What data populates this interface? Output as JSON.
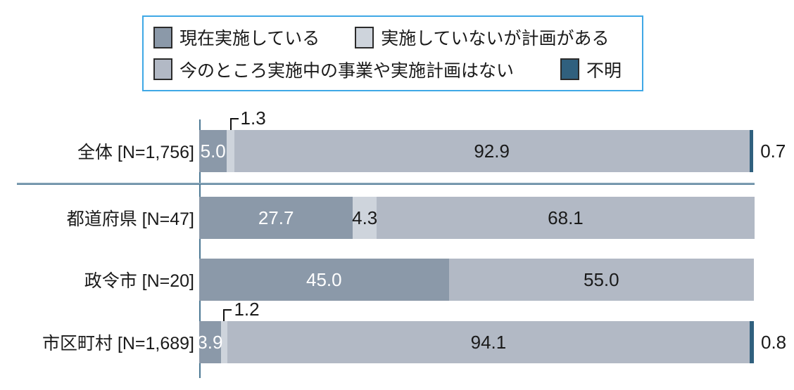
{
  "legend": {
    "items": [
      {
        "label": "現在実施している",
        "color": "#8b99a9"
      },
      {
        "label": "実施していないが計画がある",
        "color": "#ced4dc"
      },
      {
        "label": "今のところ実施中の事業や実施計画はない",
        "color": "#b2b9c5"
      },
      {
        "label": "不明",
        "color": "#30607e"
      }
    ]
  },
  "chart_data": {
    "type": "bar",
    "stacked": true,
    "orientation": "horizontal",
    "xlim": [
      0,
      100
    ],
    "unit": "percent",
    "categories": [
      "全体 [N=1,756]",
      "都道府県 [N=47]",
      "政令市 [N=20]",
      "市区町村 [N=1,689]"
    ],
    "series": [
      {
        "name": "現在実施している",
        "color": "#8b99a9",
        "values": [
          5.0,
          27.7,
          45.0,
          3.9
        ]
      },
      {
        "name": "実施していないが計画がある",
        "color": "#ced4dc",
        "values": [
          1.3,
          4.3,
          0,
          1.2
        ]
      },
      {
        "name": "今のところ実施中の事業や実施計画はない",
        "color": "#b2b9c5",
        "values": [
          92.9,
          68.1,
          55.0,
          94.1
        ]
      },
      {
        "name": "不明",
        "color": "#30607e",
        "values": [
          0.7,
          0,
          0,
          0.8
        ]
      }
    ],
    "value_label_styles": [
      "inside-white",
      "callout-if-small-else-inside-dark",
      "inside-dark",
      "outside-right"
    ],
    "legend_position": "top",
    "grid": false
  },
  "colors": {
    "axis": "#4c7893",
    "separator": "#567e99",
    "legend_border": "#3fa8e6",
    "swatch_border": "#2b2b2b",
    "inside_light_text": "#ffffff",
    "dark_text": "#1a1a1a"
  }
}
